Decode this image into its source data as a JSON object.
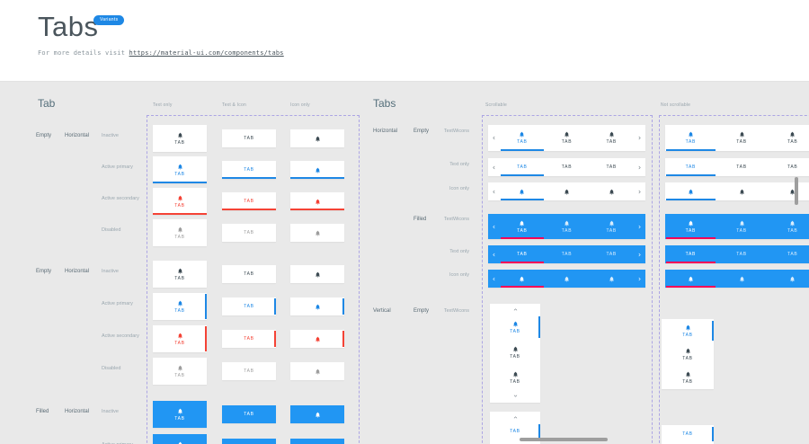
{
  "header": {
    "title": "Tabs",
    "badge": "Variants",
    "subtitle_prefix": "For more details visit",
    "subtitle_link": "https://material-ui.com/components/tabs"
  },
  "palette": {
    "primary": "#1E88E5",
    "filled_background": "#2196F3",
    "secondary": "#F44336",
    "filled_active_underline": "#F50057",
    "inactive": "#3E4C54",
    "disabled": "#9E9E9E",
    "surface": "#FFFFFF",
    "canvas": "#E9E9E9"
  },
  "tab_label": "TAB",
  "icons": {
    "tab_icon": "bell-icon",
    "scroll_left": "chevron-left-icon",
    "scroll_right": "chevron-right-icon",
    "scroll_up": "chevron-up-icon",
    "scroll_down": "chevron-down-icon"
  },
  "left_panel": {
    "heading": "Tab",
    "columns": [
      "Text only",
      "Text & Icon",
      "Icon only"
    ],
    "groups": [
      {
        "fill": "Empty",
        "orientation": "Horizontal",
        "states": [
          "Inactive",
          "Active primary",
          "Active secondary",
          "Disabled"
        ]
      },
      {
        "fill": "Empty",
        "orientation": "Horizontal",
        "states": [
          "Inactive",
          "Active primary",
          "Active secondary",
          "Disabled"
        ]
      },
      {
        "fill": "Filled",
        "orientation": "Horizontal",
        "states": [
          "Inactive",
          "Active primary"
        ]
      }
    ]
  },
  "right_panel": {
    "heading": "Tabs",
    "columns": [
      "Scrollable",
      "Not scrollable"
    ],
    "sections": [
      {
        "orientation": "Horizontal",
        "fill": "Empty",
        "rows": [
          "TextWicons",
          "Text only",
          "Icon only"
        ]
      },
      {
        "orientation": "",
        "fill": "Filled",
        "rows": [
          "TextWicons",
          "Text only",
          "Icon only"
        ]
      },
      {
        "orientation": "Vertical",
        "fill": "Empty",
        "rows": [
          "TextWicons"
        ]
      }
    ]
  }
}
